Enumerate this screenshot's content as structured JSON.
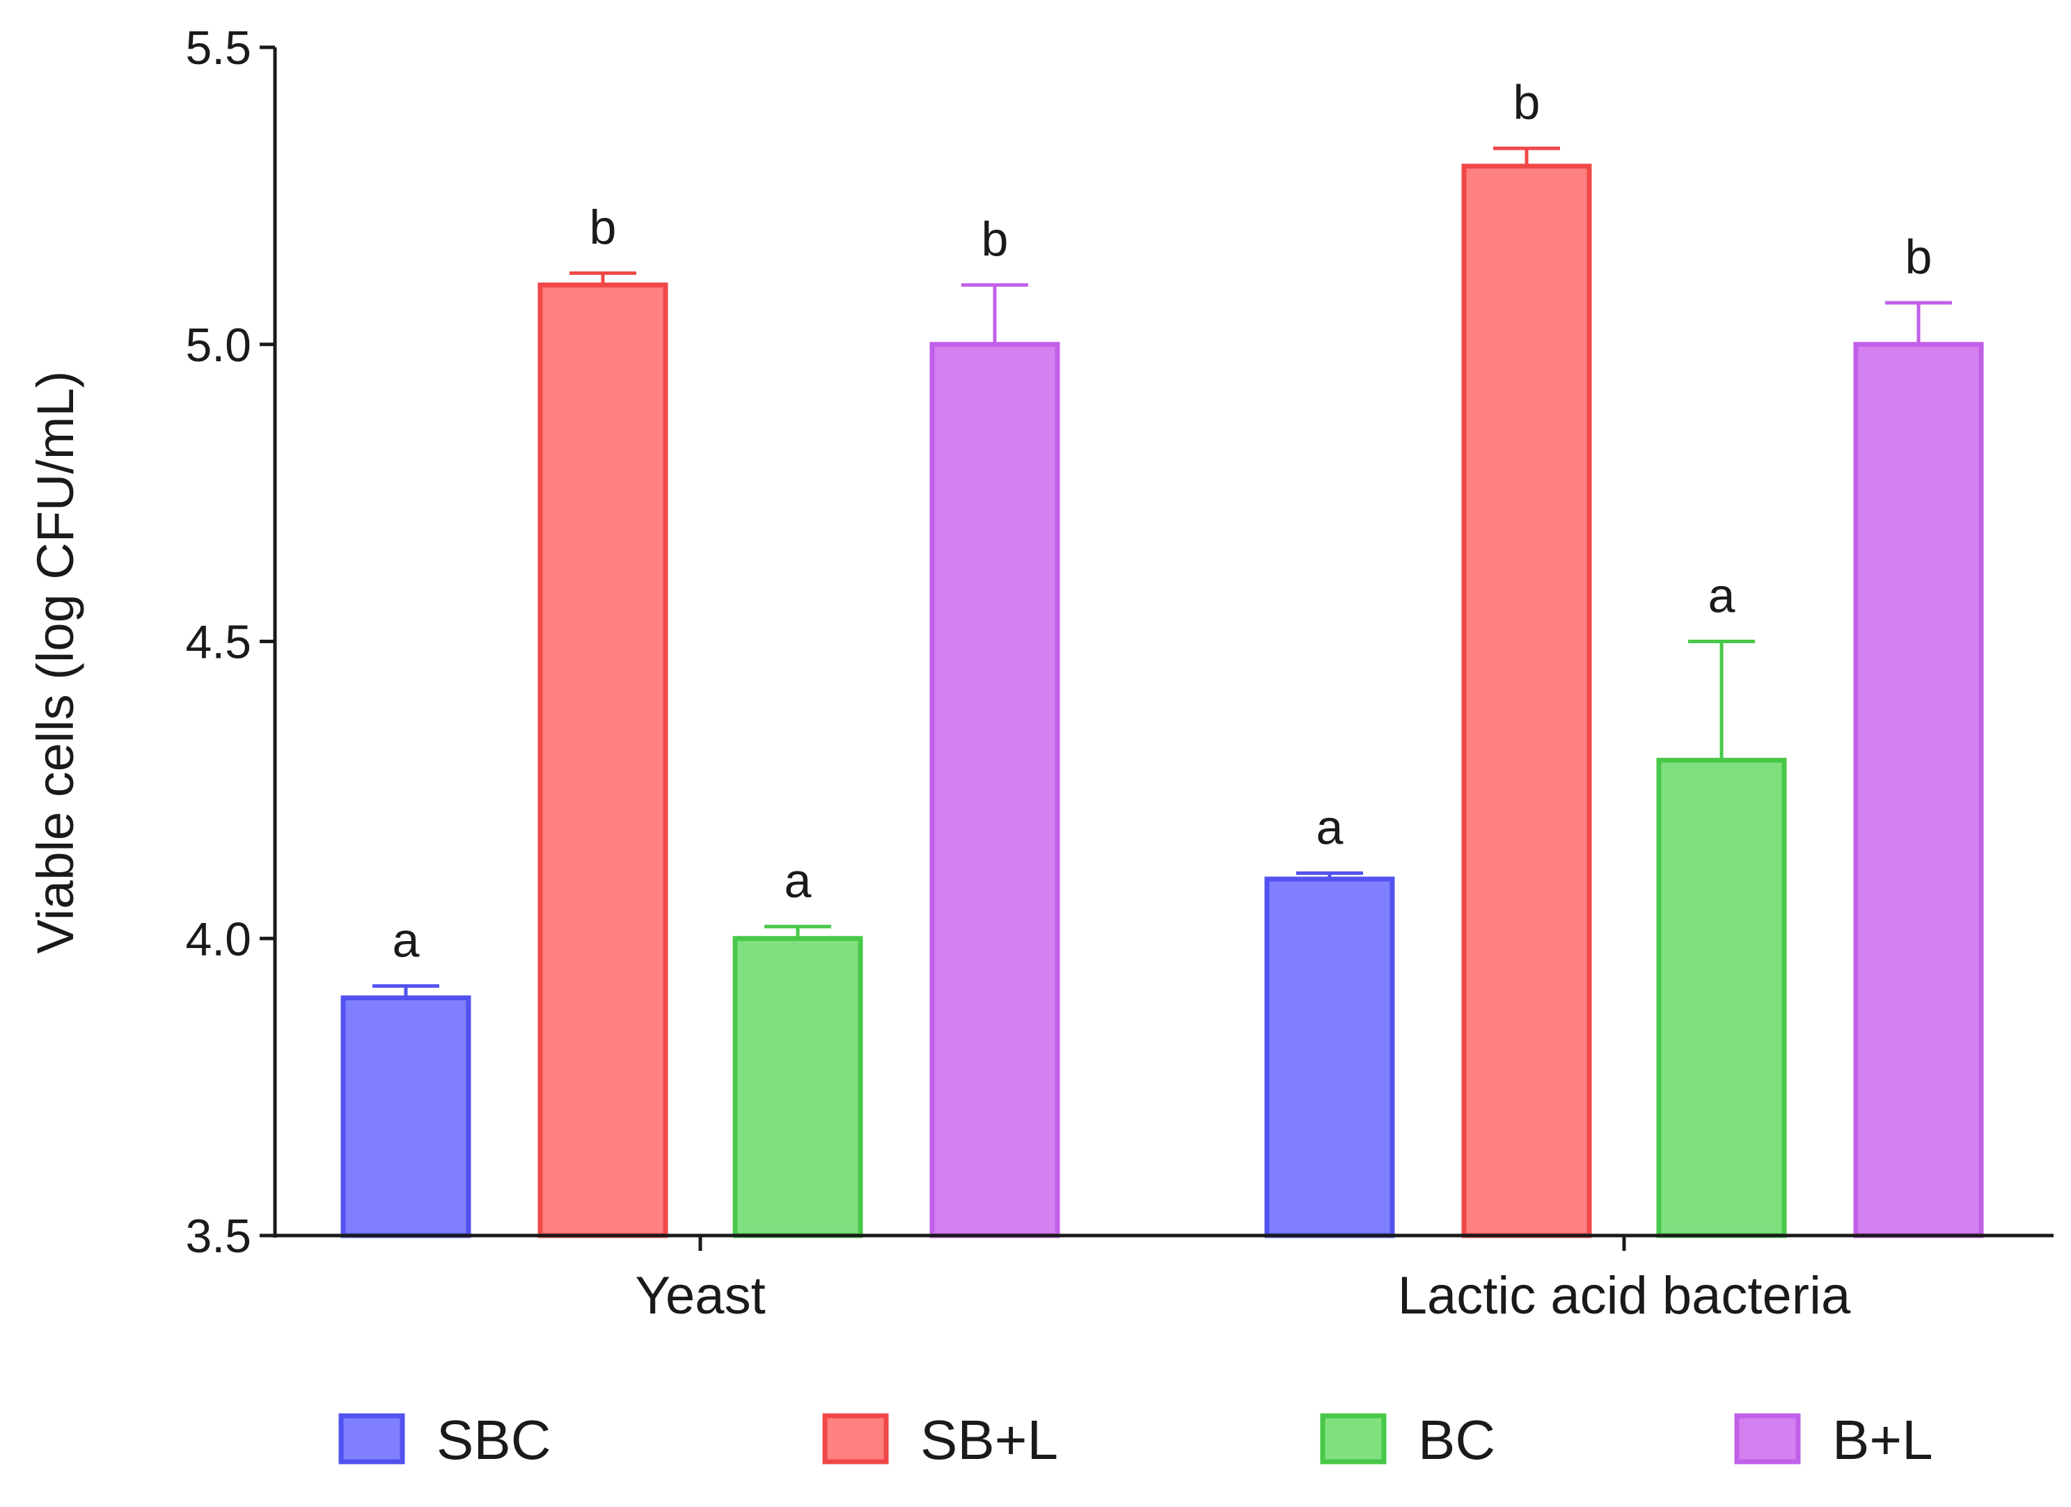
{
  "chart_data": {
    "type": "bar",
    "title": "",
    "xlabel": "",
    "ylabel": "Viable cells (log CFU/mL)",
    "ylim": [
      3.5,
      5.5
    ],
    "yticks": [
      "3.5",
      "4.0",
      "4.5",
      "5.0",
      "5.5"
    ],
    "categories": [
      "Yeast",
      "Lactic acid bacteria"
    ],
    "grid": false,
    "legend_position": "bottom",
    "series": [
      {
        "name": "SBC",
        "color": "#8080ff",
        "stroke": "#5252f0",
        "values": [
          3.9,
          4.1
        ],
        "errors": [
          0.02,
          0.01
        ],
        "letters": [
          "a",
          "a"
        ]
      },
      {
        "name": "SB+L",
        "color": "#ff8080",
        "stroke": "#f04848",
        "values": [
          5.1,
          5.3
        ],
        "errors": [
          0.02,
          0.03
        ],
        "letters": [
          "b",
          "b"
        ]
      },
      {
        "name": "BC",
        "color": "#80e080",
        "stroke": "#48c848",
        "values": [
          4.0,
          4.3
        ],
        "errors": [
          0.02,
          0.2
        ],
        "letters": [
          "a",
          "a"
        ]
      },
      {
        "name": "B+L",
        "color": "#d580f0",
        "stroke": "#c060e8",
        "values": [
          5.0,
          5.0
        ],
        "errors": [
          0.1,
          0.07
        ],
        "letters": [
          "b",
          "b"
        ]
      }
    ]
  }
}
